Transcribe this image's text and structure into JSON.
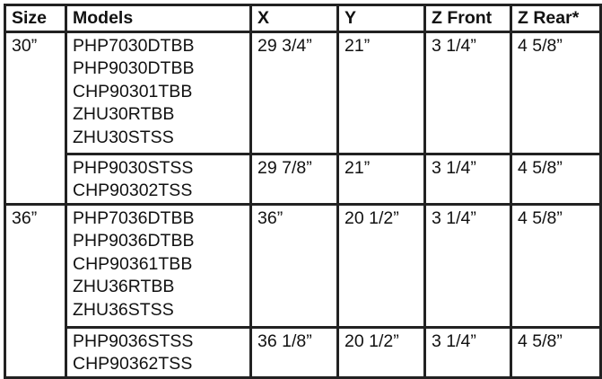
{
  "headers": [
    "Size",
    "Models",
    "X",
    "Y",
    "Z Front",
    "Z Rear*"
  ],
  "groups": [
    {
      "size": "30”",
      "rows": [
        {
          "models": [
            "PHP7030DTBB",
            "PHP9030DTBB",
            "CHP90301TBB",
            "ZHU30RTBB",
            "ZHU30STSS"
          ],
          "x": "29 3/4”",
          "y": "21”",
          "z_front": "3 1/4”",
          "z_rear": "4 5/8”"
        },
        {
          "models": [
            "PHP9030STSS",
            "CHP90302TSS"
          ],
          "x": "29 7/8”",
          "y": "21”",
          "z_front": "3 1/4”",
          "z_rear": "4 5/8”"
        }
      ]
    },
    {
      "size": "36”",
      "rows": [
        {
          "models": [
            "PHP7036DTBB",
            "PHP9036DTBB",
            "CHP90361TBB",
            "ZHU36RTBB",
            "ZHU36STSS"
          ],
          "x": "36”",
          "y": "20 1/2”",
          "z_front": "3 1/4”",
          "z_rear": "4 5/8”"
        },
        {
          "models": [
            "PHP9036STSS",
            "CHP90362TSS"
          ],
          "x": "36 1/8”",
          "y": "20 1/2”",
          "z_front": "3 1/4”",
          "z_rear": "4 5/8”"
        }
      ]
    }
  ]
}
